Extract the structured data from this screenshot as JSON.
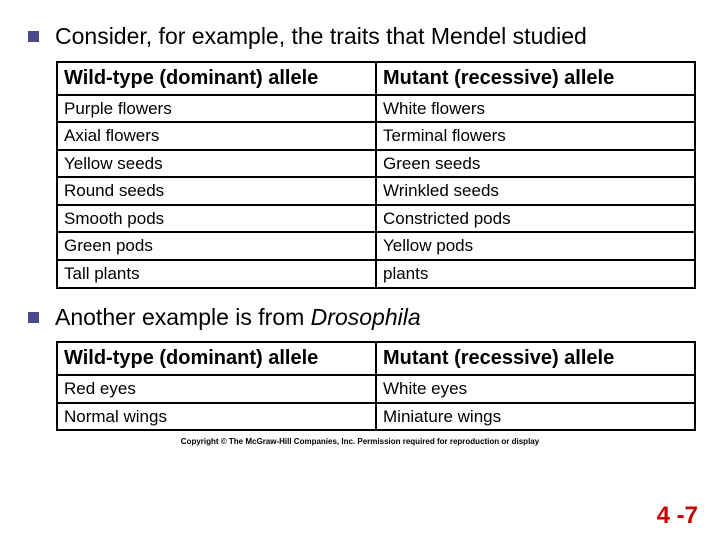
{
  "bullets": {
    "line1": "Consider, for example, the traits that Mendel studied",
    "line2_a": "Another example is from ",
    "line2_b": "Drosophila"
  },
  "table1": {
    "headers": {
      "c1": "Wild-type (dominant) allele",
      "c2": "Mutant (recessive) allele"
    },
    "rows": [
      {
        "c1": "Purple flowers",
        "c2": "White flowers"
      },
      {
        "c1": "Axial flowers",
        "c2": "Terminal flowers"
      },
      {
        "c1": "Yellow seeds",
        "c2": "Green seeds"
      },
      {
        "c1": "Round seeds",
        "c2": "Wrinkled seeds"
      },
      {
        "c1": "Smooth pods",
        "c2": "Constricted pods"
      },
      {
        "c1": "Green pods",
        "c2": "Yellow pods"
      },
      {
        "c1": "Tall plants",
        "c2": "plants"
      }
    ]
  },
  "table2": {
    "headers": {
      "c1": "Wild-type (dominant) allele",
      "c2": "Mutant (recessive) allele"
    },
    "rows": [
      {
        "c1": "Red eyes",
        "c2": "White eyes"
      },
      {
        "c1": "Normal wings",
        "c2": "Miniature wings"
      }
    ]
  },
  "copyright": "Copyright © The McGraw-Hill Companies, Inc. Permission required for reproduction or display",
  "pagenum": "4 -7",
  "style": {
    "bullet_color": "#4a4a8a",
    "text_color": "#000000",
    "border_color": "#000000",
    "pagenum_color": "#cc0000",
    "bg_color": "#ffffff",
    "bullet_fontsize": 23,
    "th_fontsize": 20,
    "td_fontsize": 17,
    "copyright_fontsize": 8,
    "pagenum_fontsize": 24
  }
}
